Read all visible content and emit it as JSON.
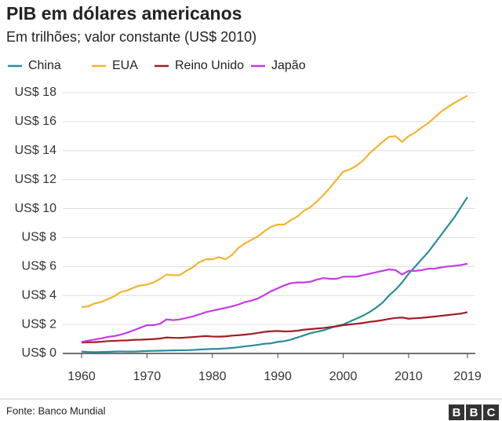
{
  "chart_data": {
    "type": "line",
    "title": "PIB em dólares americanos",
    "subtitle": "Em trilhões; valor constante (US$ 2010)",
    "source": "Fonte: Banco Mundial",
    "logo": [
      "B",
      "B",
      "C"
    ],
    "x": [
      1960,
      1961,
      1962,
      1963,
      1964,
      1965,
      1966,
      1967,
      1968,
      1969,
      1970,
      1971,
      1972,
      1973,
      1974,
      1975,
      1976,
      1977,
      1978,
      1979,
      1980,
      1981,
      1982,
      1983,
      1984,
      1985,
      1986,
      1987,
      1988,
      1989,
      1990,
      1991,
      1992,
      1993,
      1994,
      1995,
      1996,
      1997,
      1998,
      1999,
      2000,
      2001,
      2002,
      2003,
      2004,
      2005,
      2006,
      2007,
      2008,
      2009,
      2010,
      2011,
      2012,
      2013,
      2014,
      2015,
      2016,
      2017,
      2018,
      2019
    ],
    "series": [
      {
        "name": "China",
        "color": "#2a8c9e",
        "values": [
          0.13,
          0.1,
          0.09,
          0.1,
          0.11,
          0.13,
          0.14,
          0.13,
          0.13,
          0.15,
          0.17,
          0.18,
          0.19,
          0.2,
          0.21,
          0.22,
          0.22,
          0.24,
          0.27,
          0.29,
          0.31,
          0.32,
          0.35,
          0.38,
          0.43,
          0.49,
          0.54,
          0.6,
          0.67,
          0.7,
          0.8,
          0.85,
          0.95,
          1.1,
          1.25,
          1.4,
          1.5,
          1.6,
          1.75,
          1.9,
          2.0,
          2.2,
          2.4,
          2.6,
          2.85,
          3.15,
          3.5,
          4.0,
          4.4,
          4.9,
          5.5,
          6.0,
          6.5,
          7.0,
          7.6,
          8.2,
          8.8,
          9.4,
          10.1,
          10.8
        ]
      },
      {
        "name": "EUA",
        "color": "#f2b42f",
        "values": [
          3.2,
          3.25,
          3.45,
          3.55,
          3.75,
          3.95,
          4.25,
          4.35,
          4.55,
          4.7,
          4.75,
          4.9,
          5.15,
          5.45,
          5.4,
          5.4,
          5.7,
          5.95,
          6.3,
          6.5,
          6.5,
          6.65,
          6.5,
          6.8,
          7.3,
          7.6,
          7.85,
          8.1,
          8.45,
          8.75,
          8.9,
          8.9,
          9.2,
          9.45,
          9.85,
          10.1,
          10.5,
          10.95,
          11.45,
          12.0,
          12.55,
          12.7,
          12.95,
          13.3,
          13.8,
          14.2,
          14.6,
          14.95,
          15.0,
          14.6,
          15.0,
          15.25,
          15.6,
          15.9,
          16.3,
          16.7,
          17.0,
          17.3,
          17.55,
          17.8
        ]
      },
      {
        "name": "Reino Unido",
        "color": "#a21d23",
        "values": [
          0.75,
          0.77,
          0.78,
          0.81,
          0.85,
          0.87,
          0.89,
          0.9,
          0.94,
          0.95,
          0.97,
          0.99,
          1.03,
          1.1,
          1.08,
          1.07,
          1.1,
          1.13,
          1.17,
          1.2,
          1.17,
          1.16,
          1.18,
          1.23,
          1.26,
          1.3,
          1.35,
          1.42,
          1.49,
          1.53,
          1.55,
          1.52,
          1.53,
          1.57,
          1.64,
          1.68,
          1.72,
          1.76,
          1.82,
          1.87,
          1.95,
          2.0,
          2.05,
          2.1,
          2.18,
          2.23,
          2.3,
          2.38,
          2.45,
          2.48,
          2.4,
          2.43,
          2.46,
          2.5,
          2.55,
          2.6,
          2.65,
          2.7,
          2.75,
          2.85
        ]
      },
      {
        "name": "Japão",
        "color": "#c33de6",
        "values": [
          0.8,
          0.88,
          0.96,
          1.04,
          1.14,
          1.2,
          1.3,
          1.44,
          1.6,
          1.78,
          1.95,
          1.95,
          2.05,
          2.35,
          2.3,
          2.35,
          2.45,
          2.55,
          2.7,
          2.85,
          2.95,
          3.05,
          3.15,
          3.25,
          3.38,
          3.55,
          3.65,
          3.8,
          4.05,
          4.3,
          4.5,
          4.7,
          4.85,
          4.9,
          4.9,
          4.95,
          5.1,
          5.2,
          5.15,
          5.15,
          5.3,
          5.3,
          5.3,
          5.4,
          5.5,
          5.6,
          5.7,
          5.8,
          5.75,
          5.45,
          5.7,
          5.7,
          5.75,
          5.85,
          5.85,
          5.95,
          6.0,
          6.05,
          6.1,
          6.2
        ]
      }
    ],
    "xlim": [
      1960,
      2019
    ],
    "xticks": [
      1960,
      1970,
      1980,
      1990,
      2000,
      2010,
      2019
    ],
    "ylim": [
      0,
      18
    ],
    "yticks": [
      {
        "value": 0,
        "label": "US$ 0"
      },
      {
        "value": 2,
        "label": "US$ 2"
      },
      {
        "value": 4,
        "label": "US$ 4"
      },
      {
        "value": 6,
        "label": "US$ 6"
      },
      {
        "value": 8,
        "label": "US$ 8"
      },
      {
        "value": 10,
        "label": "US$ 10"
      },
      {
        "value": 12,
        "label": "US$ 12"
      },
      {
        "value": 14,
        "label": "US$ 14"
      },
      {
        "value": 16,
        "label": "US$ 16"
      },
      {
        "value": 18,
        "label": "US$ 18"
      }
    ],
    "grid": true
  }
}
